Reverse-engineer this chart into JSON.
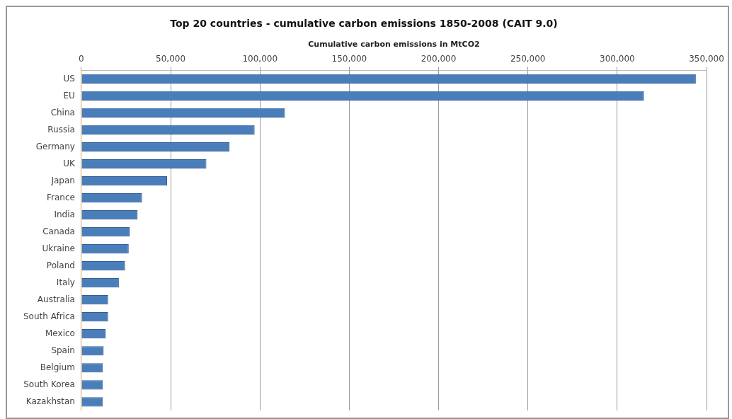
{
  "chart_data": {
    "type": "bar",
    "orientation": "horizontal",
    "title": "Top 20 countries - cumulative carbon emissions 1850-2008 (CAIT 9.0)",
    "xlabel": "Cumulative carbon emissions in MtCO2",
    "categories": [
      "US",
      "EU",
      "China",
      "Russia",
      "Germany",
      "UK",
      "Japan",
      "France",
      "India",
      "Canada",
      "Ukraine",
      "Poland",
      "Italy",
      "Australia",
      "South Africa",
      "Mexico",
      "Spain",
      "Belgium",
      "South Korea",
      "Kazakhstan"
    ],
    "values": [
      344000,
      315000,
      114000,
      97000,
      83000,
      70000,
      48000,
      34000,
      31500,
      27000,
      26500,
      24500,
      21000,
      15000,
      15000,
      13500,
      12500,
      12000,
      12000,
      12000
    ],
    "color": "#4a7ebb",
    "xlim": [
      0,
      350000
    ],
    "xticks": [
      {
        "value": 0,
        "label": "0"
      },
      {
        "value": 50000,
        "label": "50,000"
      },
      {
        "value": 100000,
        "label": "100,000"
      },
      {
        "value": 150000,
        "label": "150,000"
      },
      {
        "value": 200000,
        "label": "200,000"
      },
      {
        "value": 250000,
        "label": "250,000"
      },
      {
        "value": 300000,
        "label": "300,000"
      },
      {
        "value": 350000,
        "label": "350,000"
      }
    ],
    "grid": "x",
    "legend": false
  }
}
